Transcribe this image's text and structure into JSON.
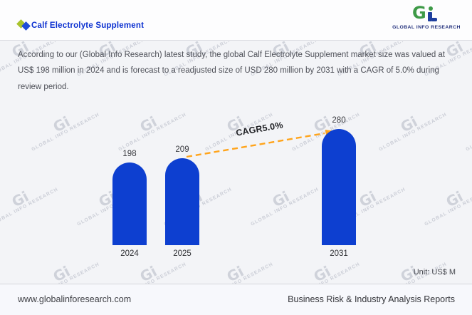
{
  "header": {
    "title": "Calf Electrolyte Supplement",
    "logo_name": "GLOBAL INFO RESEARCH"
  },
  "description": "According to our (Global Info Research) latest study, the global Calf Electrolyte Supplement market size was valued at US$ 198 million in 2024 and is forecast to a readjusted size of USD 280 million by 2031 with a CAGR of 5.0% during review period.",
  "chart_data": {
    "type": "bar",
    "categories": [
      "2024",
      "2025",
      "2031"
    ],
    "values": [
      198,
      209,
      280
    ],
    "title": "",
    "xlabel": "",
    "ylabel": "",
    "ylim": [
      0,
      300
    ],
    "grid": false,
    "legend": "none",
    "bar_color": "#0d3fd0",
    "arrow_color": "#ffa41b",
    "cagr_label": "CAGR5.0%",
    "unit_label": "Unit: US$ M"
  },
  "watermark": {
    "mark": "Gi",
    "text": "GLOBAL INFO RESEARCH"
  },
  "footer": {
    "website": "www.globalinforesearch.com",
    "tagline": "Business Risk & Industry Analysis Reports"
  }
}
